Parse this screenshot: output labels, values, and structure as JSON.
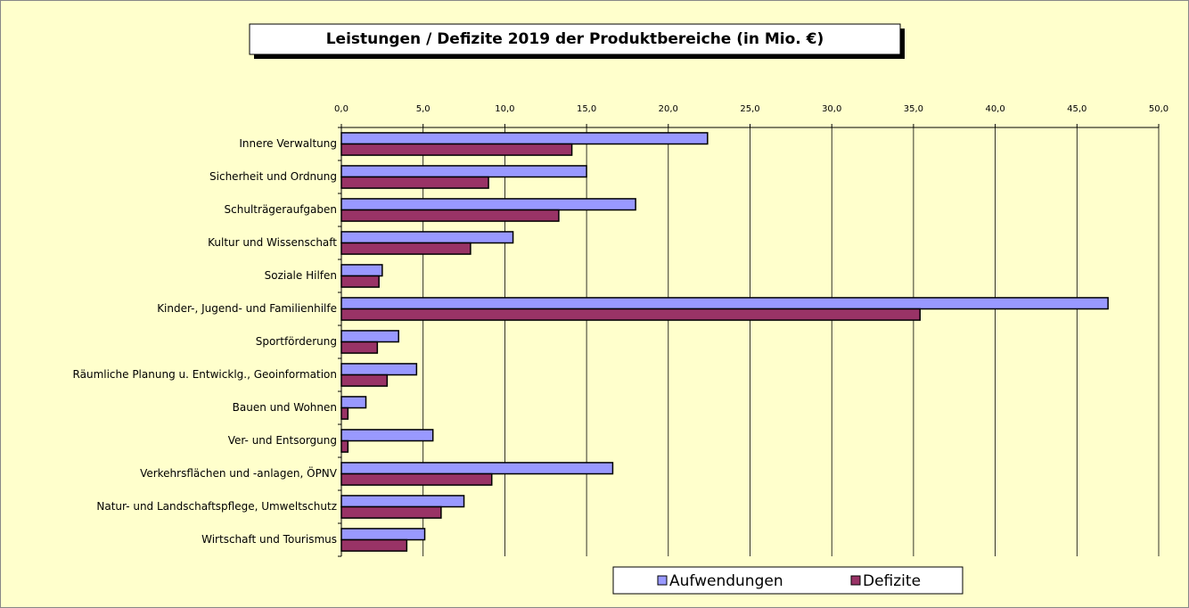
{
  "chart_data": {
    "type": "barh",
    "title": "Leistungen / Defizite 2019 der Produktbereiche  (in Mio. €)",
    "categories": [
      "Innere Verwaltung",
      "Sicherheit und Ordnung",
      "Schulträgeraufgaben",
      "Kultur und Wissenschaft",
      "Soziale Hilfen",
      "Kinder-, Jugend- und Familienhilfe",
      "Sportförderung",
      "Räumliche Planung u. Entwicklg., Geoinformation",
      "Bauen und Wohnen",
      "Ver- und Entsorgung",
      "Verkehrsflächen und -anlagen, ÖPNV",
      "Natur- und Landschaftspflege, Umweltschutz",
      "Wirtschaft und Tourismus"
    ],
    "series": [
      {
        "name": "Aufwendungen",
        "color": "#9999ff",
        "values": [
          22.4,
          15.0,
          18.0,
          10.5,
          2.5,
          46.9,
          3.5,
          4.6,
          1.5,
          5.6,
          16.6,
          7.5,
          5.1
        ]
      },
      {
        "name": "Defizite",
        "color": "#993366",
        "values": [
          14.1,
          9.0,
          13.3,
          7.9,
          2.3,
          35.4,
          2.2,
          2.8,
          0.4,
          0.4,
          9.2,
          6.1,
          4.0
        ]
      }
    ],
    "xlim": [
      0,
      50
    ],
    "xticks": [
      {
        "value": 0,
        "label": "0,0"
      },
      {
        "value": 5,
        "label": "5,0"
      },
      {
        "value": 10,
        "label": "10,0"
      },
      {
        "value": 15,
        "label": "15,0"
      },
      {
        "value": 20,
        "label": "20,0"
      },
      {
        "value": 25,
        "label": "25,0"
      },
      {
        "value": 30,
        "label": "30,0"
      },
      {
        "value": 35,
        "label": "35,0"
      },
      {
        "value": 40,
        "label": "40,0"
      },
      {
        "value": 45,
        "label": "45,0"
      },
      {
        "value": 50,
        "label": "50,0"
      }
    ],
    "grid": true,
    "legend": "bottom"
  }
}
